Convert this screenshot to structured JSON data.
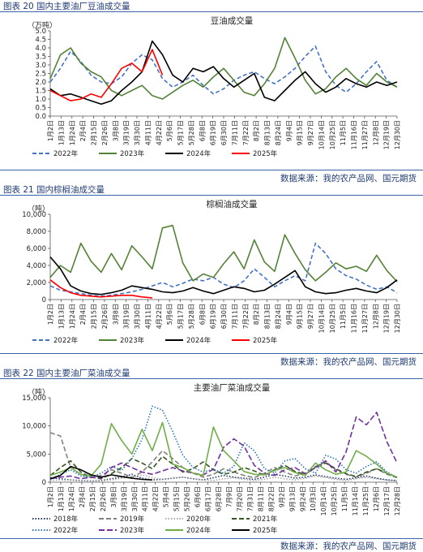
{
  "source_text": "数据来源：我的农产品网、国元期货",
  "figures": [
    {
      "label": "图表 20 国内主要油厂豆油成交量"
    },
    {
      "label": "图表 21 国内棕榈油成交量"
    },
    {
      "label": "图表 22 国内主要油厂菜油成交量"
    }
  ],
  "chart_data": [
    {
      "type": "line",
      "title": "豆油成交量",
      "ylabel": "（万吨）",
      "ylim": [
        0,
        5
      ],
      "y_ticks": [
        "0.0",
        "0.5",
        "1.0",
        "1.5",
        "2.0",
        "2.5",
        "3.0",
        "3.5",
        "4.0",
        "4.5",
        "5.0"
      ],
      "x_ticks": [
        "1月2日",
        "1月13日",
        "1月24日",
        "2月4日",
        "2月15日",
        "2月26日",
        "3月8日",
        "3月19日",
        "3月30日",
        "4月11日",
        "4月22日",
        "5月6日",
        "5月17日",
        "5月28日",
        "6月8日",
        "6月19日",
        "6月30日",
        "7月11日",
        "7月22日",
        "8月2日",
        "8月13日",
        "8月24日",
        "9月4日",
        "9月15日",
        "9月27日",
        "10月14日",
        "10月25日",
        "11月5日",
        "11月16日",
        "11月27日",
        "12月8日",
        "12月19日",
        "12月30日"
      ],
      "series": [
        {
          "name": "2022年",
          "color": "#4472c4",
          "dash": "5,3",
          "values": [
            2.0,
            2.8,
            3.8,
            3.2,
            2.4,
            2.0,
            1.9,
            2.3,
            3.1,
            3.6,
            3.3,
            2.2,
            1.7,
            2.0,
            2.4,
            1.8,
            1.3,
            1.6,
            2.1,
            2.4,
            2.6,
            2.2,
            1.9,
            2.3,
            2.8,
            3.5,
            4.1,
            2.6,
            1.8,
            1.4,
            1.9,
            2.6,
            3.2,
            2.1,
            1.7
          ]
        },
        {
          "name": "2023年",
          "color": "#548235",
          "dash": "",
          "values": [
            2.2,
            3.6,
            4.0,
            3.1,
            2.6,
            2.3,
            1.5,
            1.2,
            1.5,
            1.8,
            1.2,
            1.0,
            1.4,
            1.8,
            2.1,
            1.7,
            2.3,
            2.8,
            2.1,
            1.4,
            1.2,
            1.9,
            2.8,
            4.6,
            3.4,
            2.1,
            1.3,
            1.6,
            2.3,
            2.8,
            2.2,
            1.8,
            2.5,
            2.0,
            1.7
          ]
        },
        {
          "name": "2024年",
          "color": "#000000",
          "dash": "",
          "values": [
            1.6,
            1.2,
            1.3,
            1.1,
            0.9,
            0.7,
            0.9,
            1.5,
            2.0,
            2.6,
            4.4,
            3.6,
            2.4,
            2.0,
            2.8,
            2.6,
            2.9,
            2.2,
            1.7,
            2.1,
            2.5,
            1.1,
            0.9,
            1.5,
            2.1,
            2.6,
            1.9,
            1.4,
            1.7,
            2.2,
            1.9,
            1.7,
            2.0,
            1.8,
            2.0
          ]
        },
        {
          "name": "2025年",
          "color": "#ff0000",
          "dash": "",
          "values": [
            1.5,
            1.2,
            0.9,
            1.0,
            1.3,
            1.1,
            1.9,
            2.8,
            3.1,
            2.6,
            3.9,
            2.4
          ]
        }
      ]
    },
    {
      "type": "line",
      "title": "棕榈油成交量",
      "ylabel": "（吨）",
      "ylim": [
        0,
        10000
      ],
      "y_ticks": [
        "0",
        "2,000",
        "4,000",
        "6,000",
        "8,000",
        "10,000"
      ],
      "x_ticks": [
        "1月2日",
        "1月13日",
        "1月24日",
        "2月4日",
        "2月15日",
        "2月26日",
        "3月8日",
        "3月19日",
        "3月30日",
        "4月11日",
        "4月22日",
        "5月6日",
        "5月17日",
        "5月28日",
        "6月8日",
        "6月19日",
        "6月30日",
        "7月11日",
        "7月22日",
        "8月2日",
        "8月13日",
        "8月24日",
        "9月4日",
        "9月15日",
        "9月27日",
        "10月14日",
        "10月25日",
        "11月5日",
        "11月16日",
        "11月27日",
        "12月8日",
        "12月19日",
        "12月30日"
      ],
      "series": [
        {
          "name": "2022年",
          "color": "#4472c4",
          "dash": "5,3",
          "values": [
            1600,
            1100,
            900,
            700,
            500,
            400,
            500,
            700,
            900,
            1200,
            1600,
            2000,
            1500,
            1900,
            2400,
            2200,
            2600,
            1800,
            1400,
            2200,
            3600,
            2600,
            1500,
            2200,
            2800,
            2200,
            6600,
            5400,
            3600,
            2800,
            2400,
            1700,
            1200,
            1500,
            800
          ]
        },
        {
          "name": "2023年",
          "color": "#548235",
          "dash": "",
          "values": [
            2600,
            4000,
            3200,
            6600,
            4500,
            3200,
            5400,
            3500,
            6300,
            5000,
            3600,
            8400,
            8700,
            4300,
            2200,
            3000,
            2600,
            4200,
            5600,
            3600,
            7000,
            4400,
            3300,
            7600,
            5400,
            3500,
            2200,
            3200,
            4300,
            3600,
            3900,
            3300,
            5200,
            3400,
            2100
          ]
        },
        {
          "name": "2024年",
          "color": "#000000",
          "dash": "",
          "values": [
            5000,
            3600,
            1600,
            1000,
            700,
            600,
            800,
            1100,
            1600,
            1400,
            1200,
            900,
            800,
            1000,
            1400,
            1000,
            700,
            1100,
            1500,
            1300,
            900,
            1100,
            1800,
            2600,
            3400,
            1500,
            900,
            700,
            800,
            1100,
            1300,
            1000,
            800,
            1400,
            2300
          ]
        },
        {
          "name": "2025年",
          "color": "#ff0000",
          "dash": "",
          "values": [
            2300,
            1400,
            800,
            500,
            400,
            300,
            400,
            500,
            500,
            300,
            200
          ]
        }
      ]
    },
    {
      "type": "line",
      "title": "主要油厂菜油成交量",
      "ylabel": "（吨）",
      "ylim": [
        0,
        15000
      ],
      "y_ticks": [
        "0",
        "5,000",
        "10,000",
        "15,000"
      ],
      "x_ticks": [
        "1月2日",
        "1月13日",
        "1月24日",
        "2月4日",
        "2月15日",
        "2月26日",
        "3月8日",
        "3月19日",
        "3月30日",
        "4月11日",
        "4月22日",
        "5月4日",
        "5月15日",
        "5月26日",
        "6月6日",
        "6月17日",
        "6月28日",
        "7月9日",
        "7月20日",
        "7月31日",
        "8月11日",
        "8月22日",
        "9月2日",
        "9月13日",
        "9月24日",
        "10月3日",
        "10月14日",
        "10月25日",
        "11月5日",
        "11月14日",
        "11月25日",
        "12月6日",
        "12月17日",
        "12月28日"
      ],
      "series": [
        {
          "name": "2018年",
          "color": "#1f3864",
          "dash": "1.5,2",
          "values": [
            800,
            600,
            400,
            300,
            200,
            300,
            600,
            900,
            1400,
            700,
            400,
            500,
            700,
            900,
            600,
            400,
            800,
            1200,
            900,
            700,
            500,
            900,
            1400,
            1100,
            700,
            900,
            1300,
            1000,
            700,
            500,
            800,
            1100,
            700,
            400,
            300
          ]
        },
        {
          "name": "2019年",
          "color": "#808080",
          "dash": "6,3",
          "values": [
            8800,
            8200,
            2600,
            1400,
            800,
            1200,
            2200,
            1600,
            900,
            1800,
            3600,
            5600,
            4200,
            2600,
            1600,
            900,
            1400,
            2400,
            1800,
            1200,
            800,
            1600,
            2600,
            1800,
            1100,
            1600,
            2800,
            3600,
            2200,
            1400,
            900,
            1600,
            2400,
            1400,
            800
          ]
        },
        {
          "name": "2020年",
          "color": "#a9a9a9",
          "dash": "1.5,2",
          "values": [
            300,
            400,
            300,
            200,
            100,
            200,
            400,
            700,
            900,
            1300,
            800,
            500,
            700,
            900,
            600,
            400,
            300,
            600,
            800,
            500,
            300,
            500,
            900,
            600,
            400,
            700,
            1100,
            800,
            500,
            300,
            600,
            900,
            600,
            400,
            200
          ]
        },
        {
          "name": "2021年",
          "color": "#375623",
          "dash": "6,3",
          "values": [
            1200,
            2600,
            3800,
            1800,
            900,
            600,
            1500,
            2600,
            4200,
            3400,
            2400,
            4600,
            3200,
            1800,
            2400,
            3600,
            2200,
            1400,
            1800,
            2600,
            2000,
            1200,
            2200,
            3000,
            1900,
            1400,
            2600,
            3400,
            2400,
            1500,
            1000,
            1800,
            2400,
            1600,
            900
          ]
        },
        {
          "name": "2022年",
          "color": "#2e75b6",
          "dash": "1.5,2",
          "values": [
            500,
            1400,
            2200,
            1100,
            900,
            1600,
            2800,
            2100,
            4200,
            7600,
            13500,
            12800,
            9000,
            4800,
            2600,
            1800,
            2300,
            1600,
            2800,
            7000,
            5600,
            2400,
            1600,
            3800,
            4200,
            2400,
            1600,
            4800,
            4100,
            2200,
            1600,
            2800,
            3600,
            1800,
            800
          ]
        },
        {
          "name": "2023年",
          "color": "#7030a0",
          "dash": "7,3",
          "values": [
            600,
            900,
            1100,
            600,
            900,
            700,
            2600,
            3400,
            2600,
            1800,
            1400,
            2000,
            2600,
            2000,
            1600,
            1300,
            2300,
            6200,
            7700,
            6400,
            3000,
            1600,
            1200,
            2200,
            2600,
            1500,
            2600,
            3800,
            1800,
            5400,
            11600,
            10200,
            12400,
            7200,
            3400
          ]
        },
        {
          "name": "2024年",
          "color": "#70ad47",
          "dash": "",
          "values": [
            1200,
            1800,
            2600,
            1400,
            1100,
            3200,
            10400,
            7400,
            5000,
            9400,
            5600,
            10600,
            3200,
            2600,
            1600,
            1200,
            9800,
            5600,
            3800,
            1900,
            1400,
            1300,
            2100,
            2600,
            1700,
            1200,
            3400,
            2200,
            1400,
            1800,
            5600,
            4600,
            3200,
            1600,
            900
          ]
        },
        {
          "name": "2025年",
          "color": "#000000",
          "dash": "",
          "values": [
            600,
            1200,
            2800,
            2200,
            1300,
            900,
            1300,
            1000,
            700,
            500,
            400
          ]
        }
      ]
    }
  ]
}
